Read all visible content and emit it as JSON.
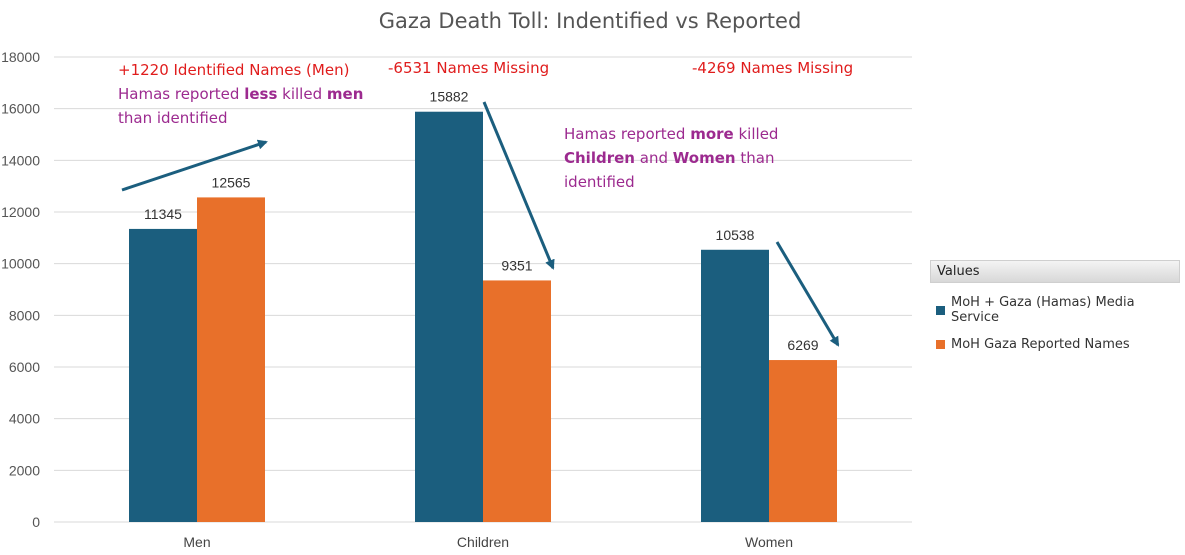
{
  "chart_data": {
    "type": "bar",
    "title": "Gaza Death Toll: Indentified vs Reported",
    "categories": [
      "Men",
      "Children",
      "Women"
    ],
    "series": [
      {
        "name": "MoH + Gaza (Hamas) Media Service",
        "values": [
          11345,
          15882,
          10538
        ],
        "color": "#1b5e7e"
      },
      {
        "name": "MoH Gaza Reported Names",
        "values": [
          12565,
          9351,
          6269
        ],
        "color": "#e8702a"
      }
    ],
    "ylim": [
      0,
      18000
    ],
    "yticks": [
      0,
      2000,
      4000,
      6000,
      8000,
      10000,
      12000,
      14000,
      16000,
      18000
    ],
    "xlabel": "",
    "ylabel": "",
    "grid": true,
    "legend_title": "Values",
    "legend_position": "right"
  },
  "annotations": {
    "men_red": "+1220 Identified Names (Men)",
    "men_purple_1": "Hamas reported",
    "men_purple_bold1": "less",
    "men_purple_2": "killed",
    "men_purple_bold2": "men",
    "men_purple_3": "than identified",
    "children_red": "-6531 Names Missing",
    "women_red": "-4269 Names Missing",
    "mid_1": "Hamas reported",
    "mid_bold1": "more",
    "mid_2": "killed",
    "mid_bold2": "Children",
    "mid_3": "and",
    "mid_bold3": "Women",
    "mid_4": "than",
    "mid_5": "identified"
  },
  "colors": {
    "arrow": "#1b5e7e",
    "grid": "#d9d9d9",
    "red_text": "#e01c1c",
    "purple_text": "#9c2a8f"
  }
}
